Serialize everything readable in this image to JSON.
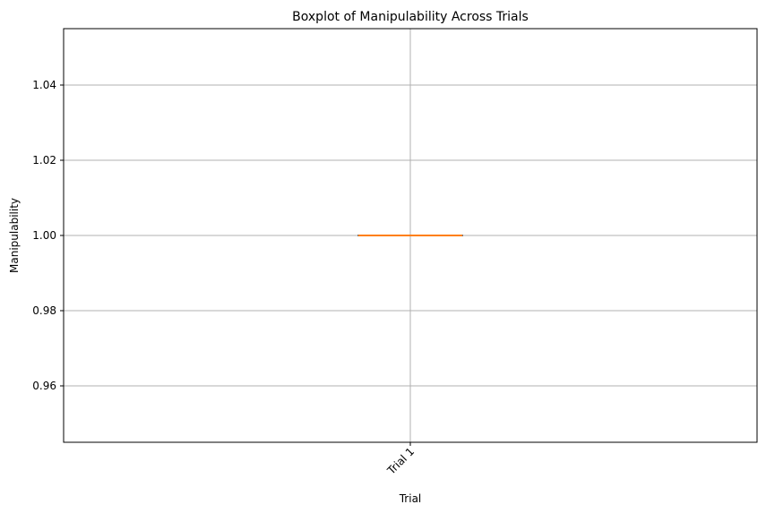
{
  "chart_data": {
    "type": "box",
    "title": "Boxplot of Manipulability Across Trials",
    "xlabel": "Trial",
    "ylabel": "Manipulability",
    "categories": [
      "Trial 1"
    ],
    "boxes": [
      {
        "category": "Trial 1",
        "min": 1.0,
        "q1": 1.0,
        "median": 1.0,
        "q3": 1.0,
        "max": 1.0
      }
    ],
    "ylim": [
      0.945,
      1.055
    ],
    "yticks": [
      0.96,
      0.98,
      1.0,
      1.02,
      1.04
    ],
    "ytick_labels": [
      "0.96",
      "0.98",
      "1.00",
      "1.02",
      "1.04"
    ],
    "xtick_rotation_deg": 45,
    "grid": true,
    "colors": {
      "box": "#1f1f1f",
      "median": "#ff7f0e",
      "whisker": "#000000",
      "grid": "#b0b0b0",
      "axes": "#000000"
    }
  }
}
